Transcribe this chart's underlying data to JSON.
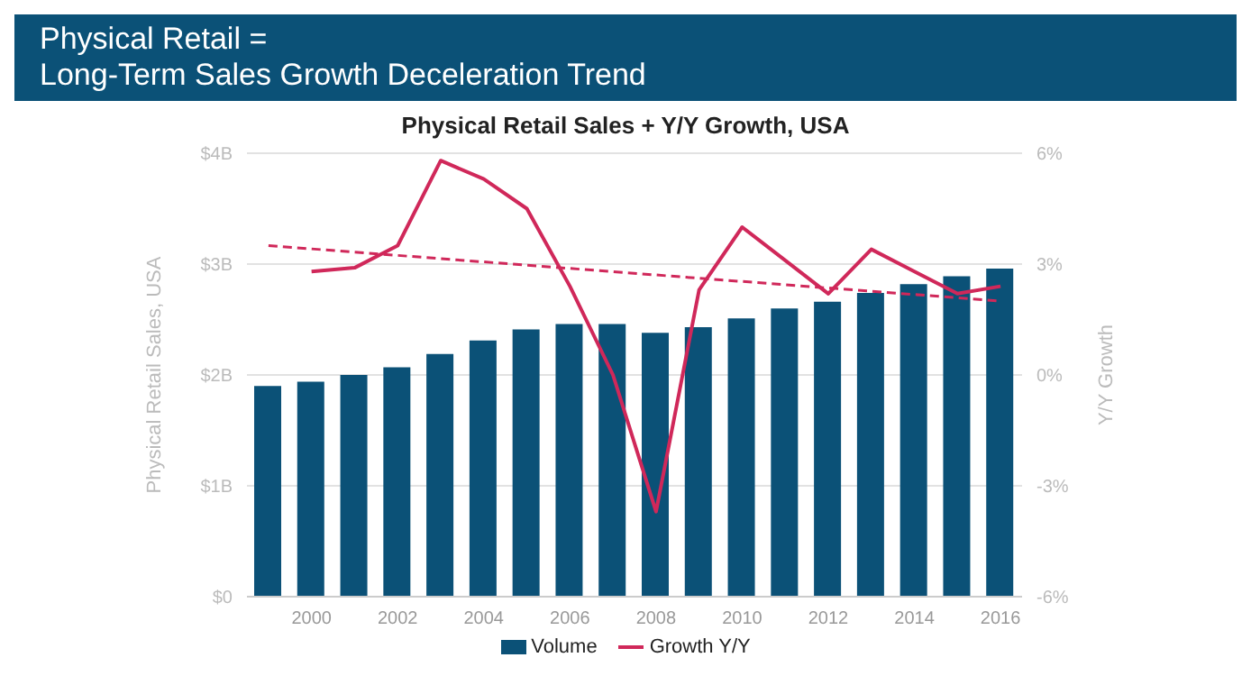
{
  "chart_data": {
    "type": "bar",
    "title": "Physical Retail =\nLong-Term Sales Growth Deceleration Trend",
    "subtitle": "Physical Retail Sales + Y/Y Growth, USA",
    "ylabel": "Physical Retail Sales, USA",
    "y2label": "Y/Y Growth",
    "categories": [
      null,
      "2000",
      null,
      "2002",
      null,
      "2004",
      null,
      "2006",
      null,
      "2008",
      null,
      "2010",
      null,
      "2012",
      null,
      "2014",
      null,
      "2016"
    ],
    "series": [
      {
        "name": "Volume",
        "color": "#0b5177",
        "values": [
          1.9,
          1.94,
          2.0,
          2.07,
          2.19,
          2.31,
          2.41,
          2.46,
          2.46,
          2.38,
          2.43,
          2.51,
          2.6,
          2.66,
          2.74,
          2.82,
          2.89,
          2.96
        ]
      },
      {
        "name": "Growth Y/Y",
        "type": "line",
        "axis": "y2",
        "color": "#d0285a",
        "line_style": "solid",
        "values": [
          null,
          2.8,
          2.9,
          3.5,
          5.8,
          5.3,
          4.5,
          2.4,
          0.0,
          -3.7,
          2.3,
          4.0,
          3.1,
          2.2,
          3.4,
          2.8,
          2.2,
          2.4
        ]
      },
      {
        "type": "line",
        "axis": "y2",
        "color": "#d0285a",
        "line_style": "dashed",
        "values": [
          3.5,
          null,
          null,
          null,
          null,
          null,
          null,
          null,
          null,
          null,
          null,
          null,
          null,
          null,
          null,
          null,
          null,
          2.0
        ]
      }
    ],
    "ylim": [
      0,
      4
    ],
    "yticks": [
      {
        "value": 0,
        "label": "$0"
      },
      {
        "value": 1,
        "label": "$1B"
      },
      {
        "value": 2,
        "label": "$2B"
      },
      {
        "value": 3,
        "label": "$3B"
      },
      {
        "value": 4,
        "label": "$4B"
      }
    ],
    "y2lim": [
      -6,
      6
    ],
    "y2ticks": [
      {
        "value": -6,
        "label": "-6%"
      },
      {
        "value": -3,
        "label": "-3%"
      },
      {
        "value": 0,
        "label": "0%"
      },
      {
        "value": 3,
        "label": "3%"
      },
      {
        "value": 6,
        "label": "6%"
      }
    ],
    "grid": "y",
    "legend": "bottom",
    "marker": "none"
  }
}
